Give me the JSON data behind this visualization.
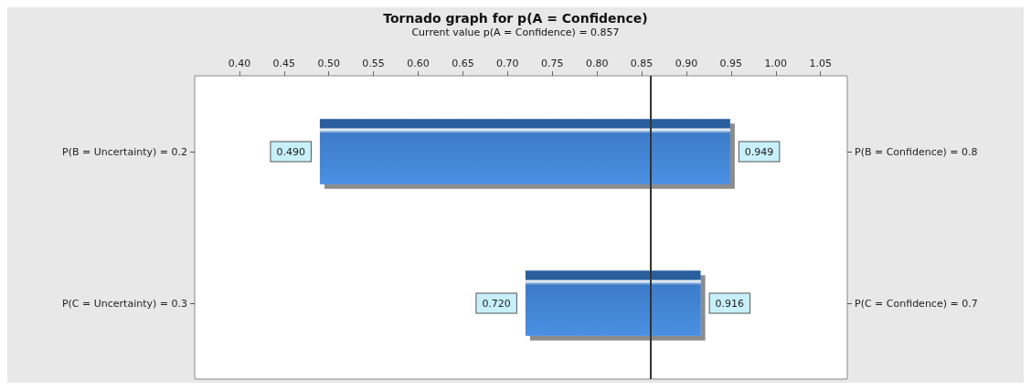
{
  "chart_data": {
    "type": "bar",
    "orientation": "horizontal",
    "title": "Tornado graph for p(A = Confidence)",
    "subtitle": "Current value p(A = Confidence) = 0.857",
    "categories": [
      "P(B = Uncertainty) = 0.2",
      "P(C = Uncertainty) = 0.3"
    ],
    "base": [
      0.49,
      0.72
    ],
    "values": [
      0.459,
      0.196
    ],
    "color": "#3d7cc9",
    "xlim": [
      0.35,
      1.08
    ],
    "xticks": [
      {
        "value": 0.4,
        "label": "0.40"
      },
      0.45,
      {
        "value": 0.5,
        "label": "0.50"
      },
      0.55,
      {
        "value": 0.6,
        "label": "0.60"
      },
      0.65,
      {
        "value": 0.7,
        "label": "0.70"
      },
      0.75,
      {
        "value": 0.8,
        "label": "0.80"
      },
      0.85,
      {
        "value": 0.9,
        "label": "0.90"
      },
      0.95,
      {
        "value": 1,
        "label": "1.00"
      },
      1.05
    ],
    "ref_lines": [
      {
        "axis": "x",
        "value": 0.857,
        "color": "#333333"
      }
    ],
    "annotations": [
      "P(B = Confidence) = 0.8",
      "P(C = Confidence) = 0.7",
      {
        "text": "0.490",
        "x": 0.49,
        "y": "P(B = Uncertainty) = 0.2"
      },
      {
        "text": "0.949",
        "x": 0.949,
        "y": "P(B = Uncertainty) = 0.2"
      },
      {
        "text": "0.720",
        "x": 0.72,
        "y": "P(C = Uncertainty) = 0.3"
      },
      {
        "text": "0.916",
        "x": 0.916,
        "y": "P(C = Uncertainty) = 0.3"
      }
    ],
    "grid": false
  }
}
